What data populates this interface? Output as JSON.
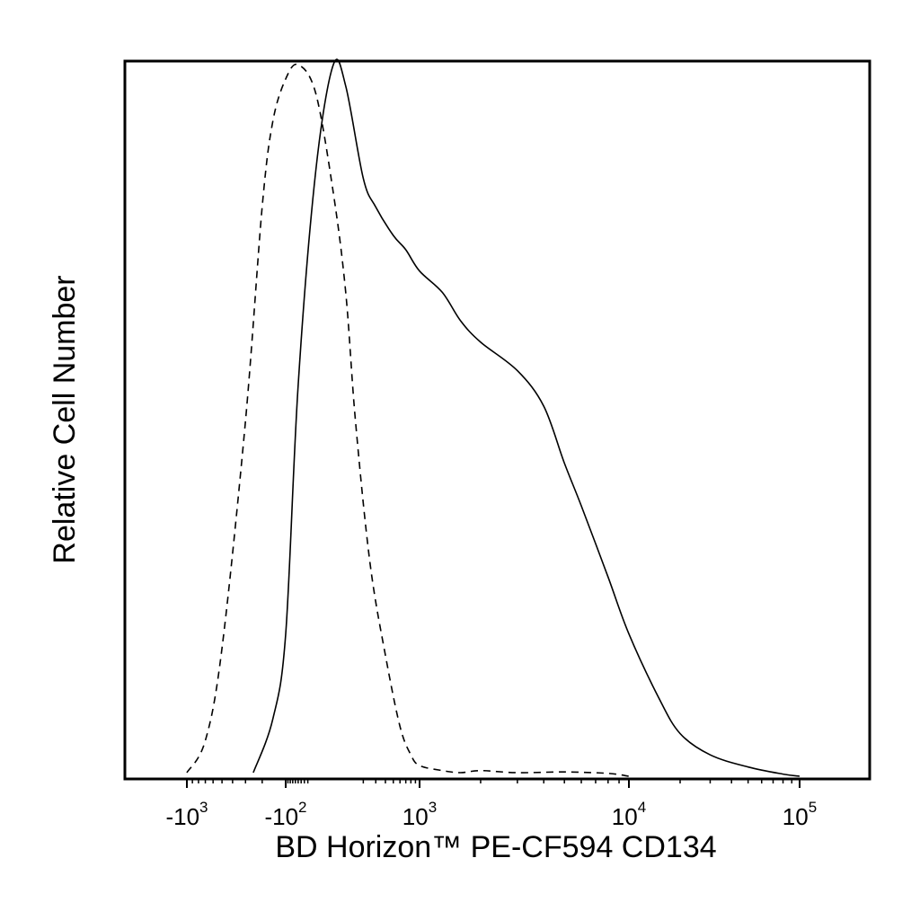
{
  "chart_data": {
    "type": "line",
    "title": "",
    "xlabel": "BD Horizon™ PE-CF594 CD134",
    "ylabel": "Relative Cell Number",
    "x_scale": "biexponential",
    "x_ticks": [
      {
        "base": "-10",
        "exp": "3",
        "value": -1000
      },
      {
        "base": "-10",
        "exp": "2",
        "value": -100
      },
      {
        "base": "10",
        "exp": "3",
        "value": 1000
      },
      {
        "base": "10",
        "exp": "4",
        "value": 10000
      },
      {
        "base": "10",
        "exp": "5",
        "value": 100000
      }
    ],
    "xlim": [
      -2500,
      262144
    ],
    "ylim": [
      0,
      100
    ],
    "grid": false,
    "legend": "none",
    "series": [
      {
        "style": "dashed",
        "x": [
          -1000,
          -700,
          -500,
          -300,
          -200,
          -150,
          -100,
          -50,
          0,
          50,
          100,
          150,
          250,
          400,
          600,
          800,
          1000,
          1300,
          1600,
          2000,
          3000,
          5000,
          8000,
          10000
        ],
        "y": [
          0.5,
          5,
          18,
          50,
          80,
          92,
          98,
          100,
          96,
          82,
          68,
          50,
          30,
          17,
          7,
          3,
          1.5,
          0.8,
          0.5,
          0.8,
          0.5,
          0.6,
          0.4,
          0
        ]
      },
      {
        "style": "solid",
        "x": [
          -250,
          -150,
          -100,
          -50,
          0,
          50,
          100,
          200,
          300,
          500,
          700,
          1000,
          1300,
          1600,
          2000,
          3000,
          4000,
          5000,
          6000,
          8000,
          10000,
          15000,
          20000,
          30000,
          50000,
          80000,
          100000
        ],
        "y": [
          0.5,
          8,
          20,
          55,
          85,
          100,
          97,
          84,
          80,
          76,
          74,
          71,
          68,
          64,
          61,
          57,
          52,
          44,
          38,
          28,
          20,
          11,
          6,
          3,
          1.3,
          0.3,
          0
        ]
      }
    ]
  }
}
